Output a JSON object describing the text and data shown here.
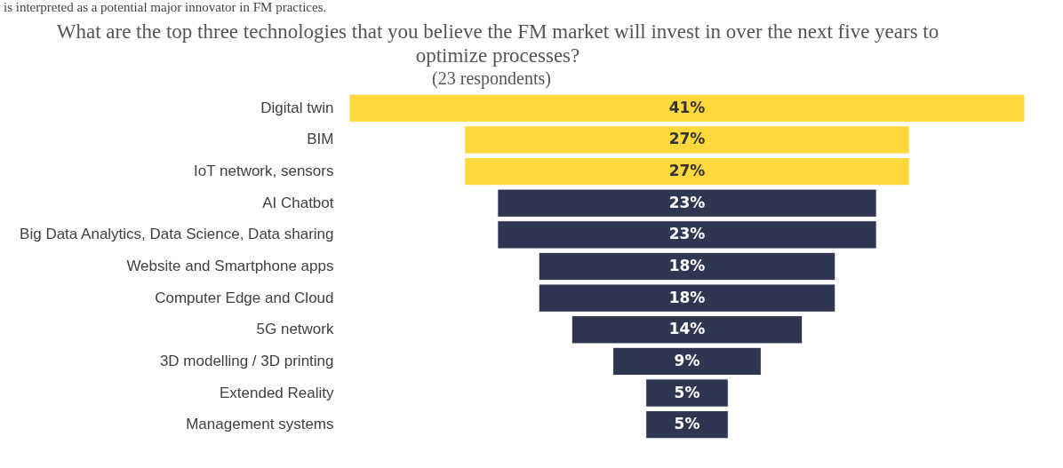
{
  "chart_data": {
    "type": "other",
    "title": "What are the top three technologies that you believe the FM market will invest in over the next five years to optimize processes?",
    "subtitle": "(23 respondents)",
    "annotations": [
      "is interpreted as a potential major innovator in FM practices."
    ],
    "categories": [
      "Digital twin",
      "BIM",
      "IoT network, sensors",
      "AI Chatbot",
      "Big Data Analytics, Data Science, Data sharing",
      "Website and Smartphone apps",
      "Computer Edge and Cloud",
      "5G network",
      "3D modelling / 3D printing",
      "Extended Reality",
      "Management systems"
    ],
    "values": [
      41,
      27,
      27,
      23,
      23,
      18,
      18,
      14,
      9,
      5,
      5
    ],
    "value_labels": [
      "41%",
      "27%",
      "27%",
      "23%",
      "23%",
      "18%",
      "18%",
      "14%",
      "9%",
      "5%",
      "5%"
    ],
    "colors": [
      "#ffd93b",
      "#ffd93b",
      "#ffd93b",
      "#2e3652",
      "#2e3652",
      "#2e3652",
      "#2e3652",
      "#2e3652",
      "#2e3652",
      "#2e3652",
      "#2e3652"
    ]
  }
}
